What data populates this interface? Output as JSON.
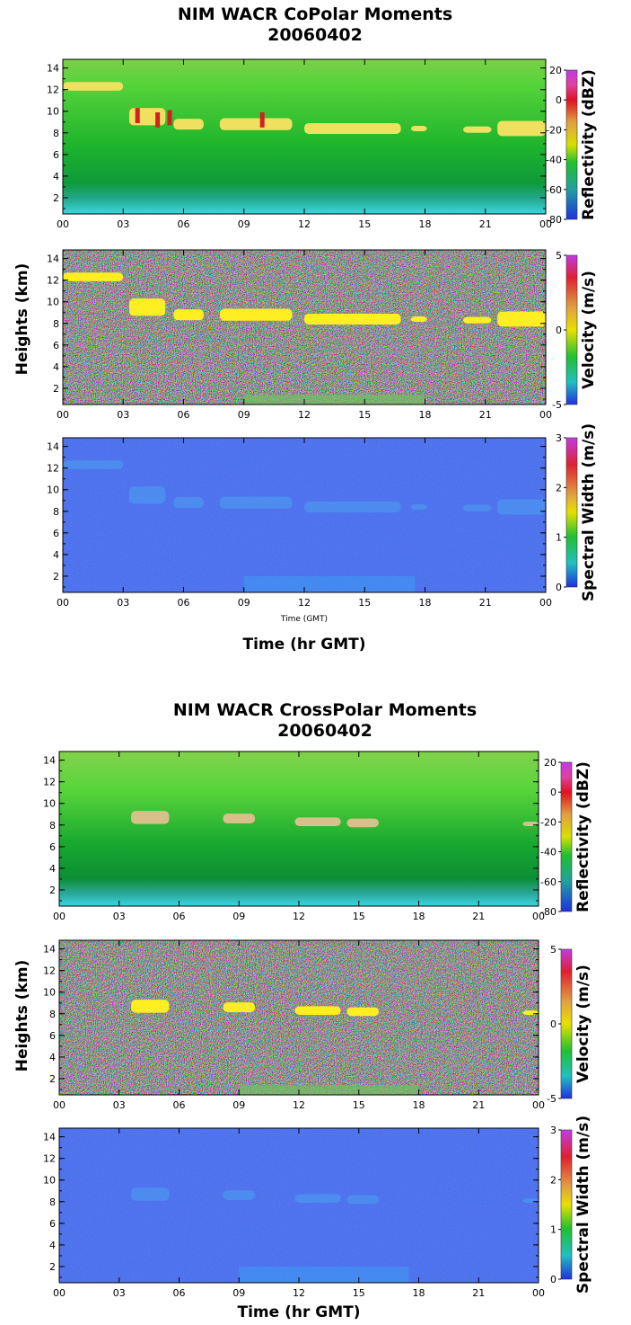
{
  "figures": [
    {
      "title": "NIM WACR CoPolar Moments",
      "date": "20060402",
      "time_label_small": "Time (GMT)",
      "time_label": "Time (hr GMT)"
    },
    {
      "title": "NIM WACR CrossPolar Moments",
      "date": "20060402",
      "time_label": "Time (hr GMT)"
    }
  ],
  "shared_ylabel": "Heights (km)",
  "chart_data": [
    {
      "type": "heatmap",
      "figure": 0,
      "colorbar_label": "Reflectivity (dBZ)",
      "colorbar_ticks": [
        "20",
        "0",
        "-20",
        "-40",
        "-60",
        "-80"
      ],
      "clim": [
        -80,
        20
      ],
      "x_ticks": [
        "00",
        "03",
        "06",
        "09",
        "12",
        "15",
        "18",
        "21",
        "00"
      ],
      "y_ticks": [
        "14",
        "12",
        "10",
        "8",
        "6",
        "4",
        "2"
      ],
      "xlim": [
        0,
        24
      ],
      "ylim": [
        0.5,
        14.8
      ]
    },
    {
      "type": "heatmap",
      "figure": 0,
      "colorbar_label": "Velocity (m/s)",
      "colorbar_ticks": [
        "5",
        "0",
        "-5"
      ],
      "clim": [
        -5,
        5
      ],
      "x_ticks": [
        "00",
        "03",
        "06",
        "09",
        "12",
        "15",
        "18",
        "21",
        "00"
      ],
      "y_ticks": [
        "14",
        "12",
        "10",
        "8",
        "6",
        "4",
        "2"
      ],
      "xlim": [
        0,
        24
      ],
      "ylim": [
        0.5,
        14.8
      ]
    },
    {
      "type": "heatmap",
      "figure": 0,
      "colorbar_label": "Spectral Width (m/s)",
      "colorbar_ticks": [
        "3",
        "2",
        "1",
        "0"
      ],
      "clim": [
        0,
        3
      ],
      "x_ticks": [
        "00",
        "03",
        "06",
        "09",
        "12",
        "15",
        "18",
        "21",
        "00"
      ],
      "y_ticks": [
        "14",
        "12",
        "10",
        "8",
        "6",
        "4",
        "2"
      ],
      "xlim": [
        0,
        24
      ],
      "ylim": [
        0.5,
        14.8
      ]
    },
    {
      "type": "heatmap",
      "figure": 1,
      "colorbar_label": "Reflectivity (dBZ)",
      "colorbar_ticks": [
        "20",
        "0",
        "-20",
        "-40",
        "-60",
        "-80"
      ],
      "clim": [
        -80,
        20
      ],
      "x_ticks": [
        "00",
        "03",
        "06",
        "09",
        "12",
        "15",
        "18",
        "21",
        "00"
      ],
      "y_ticks": [
        "14",
        "12",
        "10",
        "8",
        "6",
        "4",
        "2"
      ],
      "xlim": [
        0,
        24
      ],
      "ylim": [
        0.5,
        14.8
      ]
    },
    {
      "type": "heatmap",
      "figure": 1,
      "colorbar_label": "Velocity (m/s)",
      "colorbar_ticks": [
        "5",
        "0",
        "-5"
      ],
      "clim": [
        -5,
        5
      ],
      "x_ticks": [
        "00",
        "03",
        "06",
        "09",
        "12",
        "15",
        "18",
        "21",
        "00"
      ],
      "y_ticks": [
        "14",
        "12",
        "10",
        "8",
        "6",
        "4",
        "2"
      ],
      "xlim": [
        0,
        24
      ],
      "ylim": [
        0.5,
        14.8
      ]
    },
    {
      "type": "heatmap",
      "figure": 1,
      "colorbar_label": "Spectral Width (m/s)",
      "colorbar_ticks": [
        "3",
        "2",
        "1",
        "0"
      ],
      "clim": [
        0,
        3
      ],
      "x_ticks": [
        "00",
        "03",
        "06",
        "09",
        "12",
        "15",
        "18",
        "21",
        "00"
      ],
      "y_ticks": [
        "14",
        "12",
        "10",
        "8",
        "6",
        "4",
        "2"
      ],
      "xlim": [
        0,
        24
      ],
      "ylim": [
        0.5,
        14.8
      ]
    }
  ]
}
